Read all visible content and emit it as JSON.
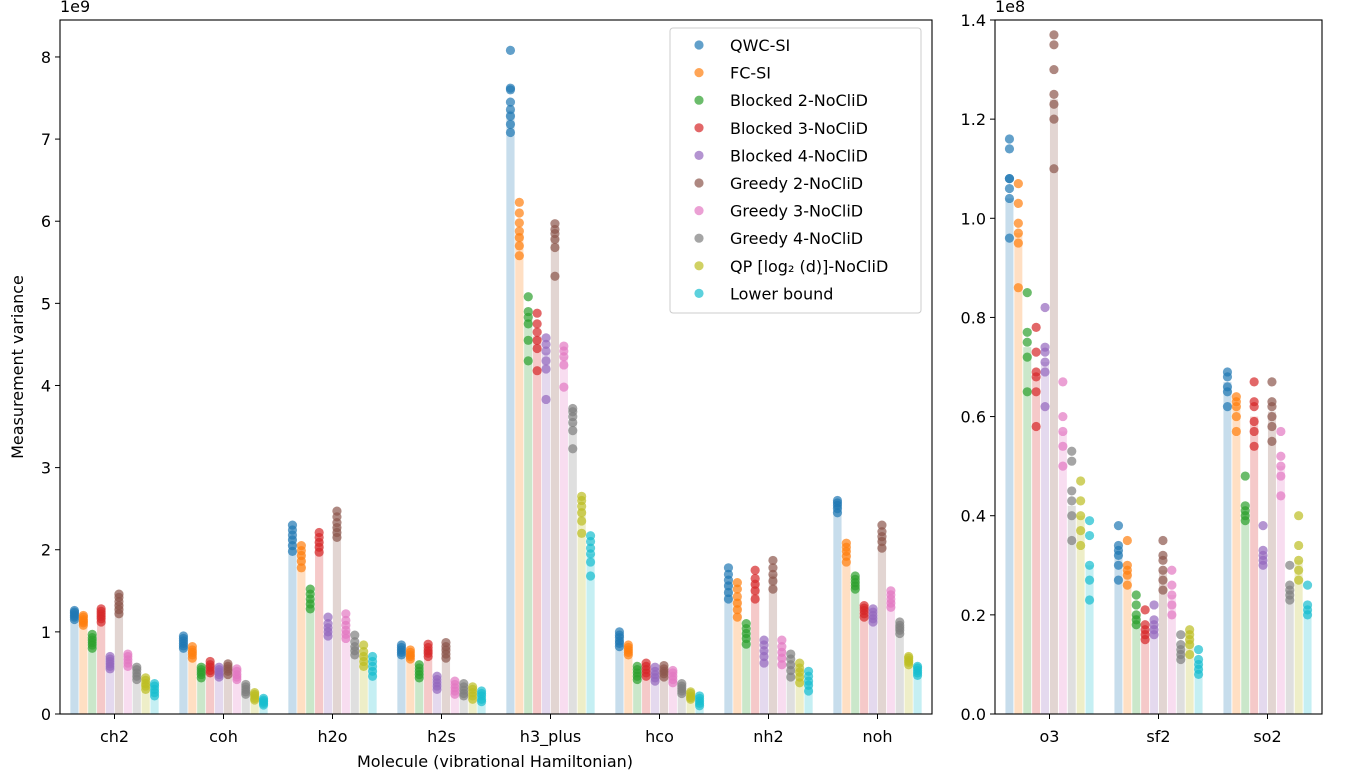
{
  "chart_data": [
    {
      "type": "bar",
      "subtype": "bar-with-scatter-points",
      "xlabel": "Molecule (vibrational Hamiltonian)",
      "ylabel": "Measurement variance",
      "offset_label": "1e9",
      "ylim": [
        0,
        8.45
      ],
      "yticks": [
        0,
        1,
        2,
        3,
        4,
        5,
        6,
        7,
        8
      ],
      "legend_position": "top-right",
      "categories": [
        "ch2",
        "coh",
        "h2o",
        "h2s",
        "h3_plus",
        "hco",
        "nh2",
        "noh"
      ],
      "series": [
        {
          "name": "QWC-SI",
          "color": "#1f77b4",
          "values": [
            1.21,
            0.87,
            2.15,
            0.8,
            7.35,
            0.9,
            1.6,
            2.55
          ]
        },
        {
          "name": "FC-SI",
          "color": "#ff7f0e",
          "values": [
            1.13,
            0.75,
            1.95,
            0.73,
            5.85,
            0.8,
            1.4,
            2.0
          ]
        },
        {
          "name": "Blocked 2-NoCliD",
          "color": "#2ca02c",
          "values": [
            0.87,
            0.5,
            1.4,
            0.52,
            4.8,
            0.52,
            1.0,
            1.6
          ]
        },
        {
          "name": "Blocked 3-NoCliD",
          "color": "#d62728",
          "values": [
            1.2,
            0.58,
            2.12,
            0.78,
            4.6,
            0.55,
            1.6,
            1.27
          ]
        },
        {
          "name": "Blocked 4-NoCliD",
          "color": "#9467bd",
          "values": [
            0.62,
            0.52,
            1.05,
            0.38,
            4.4,
            0.5,
            0.78,
            1.2
          ]
        },
        {
          "name": "Greedy 2-NoCliD",
          "color": "#8c564b",
          "values": [
            1.35,
            0.55,
            2.28,
            0.8,
            5.8,
            0.55,
            1.7,
            2.15
          ]
        },
        {
          "name": "Greedy 3-NoCliD",
          "color": "#e377c2",
          "values": [
            0.67,
            0.48,
            1.02,
            0.33,
            4.35,
            0.48,
            0.78,
            1.38
          ]
        },
        {
          "name": "Greedy 4-NoCliD",
          "color": "#7f7f7f",
          "values": [
            0.5,
            0.3,
            0.83,
            0.3,
            3.55,
            0.32,
            0.62,
            1.03
          ]
        },
        {
          "name": "QP [log₂ (d)]-NoCliD",
          "color": "#bcbd22",
          "values": [
            0.38,
            0.22,
            0.72,
            0.27,
            2.5,
            0.23,
            0.53,
            0.65
          ]
        },
        {
          "name": "Lower bound",
          "color": "#17becf",
          "values": [
            0.3,
            0.15,
            0.56,
            0.22,
            1.95,
            0.17,
            0.4,
            0.53
          ]
        }
      ],
      "points": [
        [
          [
            1.15,
            1.18,
            1.2,
            1.22,
            1.24,
            1.26
          ],
          [
            1.08,
            1.11,
            1.13,
            1.15,
            1.18,
            1.2
          ],
          [
            0.8,
            0.84,
            0.87,
            0.9,
            0.93,
            0.97
          ],
          [
            1.12,
            1.16,
            1.19,
            1.22,
            1.25,
            1.28
          ],
          [
            0.55,
            0.58,
            0.61,
            0.64,
            0.67,
            0.7
          ],
          [
            1.22,
            1.27,
            1.32,
            1.37,
            1.42,
            1.46
          ],
          [
            0.58,
            0.62,
            0.66,
            0.7,
            0.73
          ],
          [
            0.42,
            0.46,
            0.5,
            0.54,
            0.57
          ],
          [
            0.3,
            0.34,
            0.37,
            0.41,
            0.44
          ],
          [
            0.22,
            0.26,
            0.3,
            0.34,
            0.37
          ]
        ],
        [
          [
            0.8,
            0.83,
            0.86,
            0.89,
            0.92,
            0.95
          ],
          [
            0.68,
            0.72,
            0.75,
            0.78,
            0.82
          ],
          [
            0.44,
            0.48,
            0.51,
            0.54,
            0.57
          ],
          [
            0.5,
            0.53,
            0.57,
            0.6,
            0.64
          ],
          [
            0.45,
            0.48,
            0.51,
            0.54,
            0.57
          ],
          [
            0.48,
            0.52,
            0.55,
            0.58,
            0.61
          ],
          [
            0.42,
            0.45,
            0.48,
            0.52,
            0.55
          ],
          [
            0.24,
            0.27,
            0.3,
            0.33,
            0.36
          ],
          [
            0.17,
            0.19,
            0.22,
            0.24,
            0.26
          ],
          [
            0.11,
            0.13,
            0.15,
            0.17,
            0.19
          ]
        ],
        [
          [
            1.98,
            2.05,
            2.12,
            2.18,
            2.24,
            2.3
          ],
          [
            1.78,
            1.86,
            1.93,
            1.99,
            2.05
          ],
          [
            1.28,
            1.34,
            1.4,
            1.46,
            1.52
          ],
          [
            1.97,
            2.03,
            2.09,
            2.15,
            2.21
          ],
          [
            0.95,
            1.0,
            1.05,
            1.1,
            1.18
          ],
          [
            2.15,
            2.21,
            2.27,
            2.33,
            2.4,
            2.47
          ],
          [
            0.92,
            0.97,
            1.02,
            1.08,
            1.14,
            1.22
          ],
          [
            0.72,
            0.77,
            0.82,
            0.88,
            0.96
          ],
          [
            0.58,
            0.64,
            0.7,
            0.76,
            0.84
          ],
          [
            0.46,
            0.52,
            0.58,
            0.64,
            0.7
          ]
        ],
        [
          [
            0.72,
            0.75,
            0.78,
            0.81,
            0.84
          ],
          [
            0.67,
            0.7,
            0.72,
            0.75,
            0.78
          ],
          [
            0.44,
            0.48,
            0.52,
            0.56,
            0.6
          ],
          [
            0.7,
            0.74,
            0.77,
            0.81,
            0.85
          ],
          [
            0.3,
            0.34,
            0.38,
            0.42,
            0.46
          ],
          [
            0.68,
            0.73,
            0.78,
            0.82,
            0.87
          ],
          [
            0.24,
            0.28,
            0.32,
            0.36,
            0.4
          ],
          [
            0.22,
            0.25,
            0.29,
            0.33,
            0.37
          ],
          [
            0.18,
            0.22,
            0.26,
            0.3,
            0.33
          ],
          [
            0.15,
            0.18,
            0.22,
            0.25,
            0.28
          ]
        ],
        [
          [
            7.08,
            7.18,
            7.28,
            7.36,
            7.45,
            7.6,
            7.62,
            8.08
          ],
          [
            5.58,
            5.7,
            5.8,
            5.88,
            5.98,
            6.1,
            6.23
          ],
          [
            4.3,
            4.55,
            4.75,
            4.83,
            4.9,
            5.08
          ],
          [
            4.18,
            4.45,
            4.55,
            4.65,
            4.75,
            4.88
          ],
          [
            3.83,
            4.2,
            4.3,
            4.42,
            4.5,
            4.58
          ],
          [
            5.33,
            5.68,
            5.78,
            5.85,
            5.9,
            5.97
          ],
          [
            3.98,
            4.25,
            4.35,
            4.42,
            4.48
          ],
          [
            3.23,
            3.45,
            3.55,
            3.62,
            3.68,
            3.72
          ],
          [
            2.2,
            2.35,
            2.45,
            2.53,
            2.6,
            2.65
          ],
          [
            1.68,
            1.85,
            1.95,
            2.02,
            2.1,
            2.17
          ]
        ],
        [
          [
            0.82,
            0.86,
            0.89,
            0.93,
            0.96,
            1.0
          ],
          [
            0.72,
            0.75,
            0.78,
            0.81,
            0.84
          ],
          [
            0.42,
            0.46,
            0.5,
            0.54,
            0.58
          ],
          [
            0.46,
            0.5,
            0.54,
            0.58,
            0.62
          ],
          [
            0.4,
            0.44,
            0.48,
            0.52,
            0.57
          ],
          [
            0.45,
            0.49,
            0.52,
            0.55,
            0.59
          ],
          [
            0.38,
            0.42,
            0.46,
            0.5,
            0.53
          ],
          [
            0.25,
            0.28,
            0.31,
            0.34,
            0.37
          ],
          [
            0.18,
            0.2,
            0.22,
            0.25,
            0.27
          ],
          [
            0.1,
            0.13,
            0.16,
            0.19,
            0.22
          ]
        ],
        [
          [
            1.4,
            1.48,
            1.56,
            1.63,
            1.7,
            1.78
          ],
          [
            1.18,
            1.27,
            1.35,
            1.43,
            1.52,
            1.6
          ],
          [
            0.85,
            0.92,
            0.98,
            1.04,
            1.1
          ],
          [
            1.4,
            1.5,
            1.58,
            1.65,
            1.75
          ],
          [
            0.62,
            0.7,
            0.77,
            0.84,
            0.9
          ],
          [
            1.52,
            1.62,
            1.7,
            1.78,
            1.87
          ],
          [
            0.6,
            0.68,
            0.75,
            0.82,
            0.9
          ],
          [
            0.45,
            0.53,
            0.6,
            0.67,
            0.73
          ],
          [
            0.38,
            0.45,
            0.51,
            0.56,
            0.62
          ],
          [
            0.28,
            0.35,
            0.4,
            0.46,
            0.52
          ]
        ],
        [
          [
            2.45,
            2.5,
            2.54,
            2.57,
            2.6
          ],
          [
            1.85,
            1.92,
            1.98,
            2.03,
            2.08
          ],
          [
            1.52,
            1.56,
            1.6,
            1.64,
            1.68
          ],
          [
            1.18,
            1.22,
            1.26,
            1.29,
            1.32
          ],
          [
            1.12,
            1.16,
            1.2,
            1.24,
            1.28
          ],
          [
            2.02,
            2.1,
            2.16,
            2.22,
            2.3
          ],
          [
            1.3,
            1.35,
            1.4,
            1.45,
            1.5
          ],
          [
            0.98,
            1.02,
            1.05,
            1.08,
            1.12
          ],
          [
            0.6,
            0.63,
            0.65,
            0.68,
            0.7
          ],
          [
            0.47,
            0.5,
            0.53,
            0.56,
            0.58
          ]
        ]
      ]
    },
    {
      "type": "bar",
      "subtype": "bar-with-scatter-points",
      "xlabel": "",
      "ylabel": "",
      "offset_label": "1e8",
      "ylim": [
        0,
        1.4
      ],
      "yticks": [
        0.0,
        0.2,
        0.4,
        0.6,
        0.8,
        1.0,
        1.2,
        1.4
      ],
      "categories": [
        "o3",
        "sf2",
        "so2"
      ],
      "series": [
        {
          "name": "QWC-SI",
          "color": "#1f77b4",
          "values": [
            1.04,
            0.33,
            0.67
          ]
        },
        {
          "name": "FC-SI",
          "color": "#ff7f0e",
          "values": [
            0.97,
            0.29,
            0.62
          ]
        },
        {
          "name": "Blocked 2-NoCliD",
          "color": "#2ca02c",
          "values": [
            0.74,
            0.2,
            0.41
          ]
        },
        {
          "name": "Blocked 3-NoCliD",
          "color": "#d62728",
          "values": [
            0.68,
            0.17,
            0.6
          ]
        },
        {
          "name": "Blocked 4-NoCliD",
          "color": "#9467bd",
          "values": [
            0.71,
            0.18,
            0.32
          ]
        },
        {
          "name": "Greedy 2-NoCliD",
          "color": "#8c564b",
          "values": [
            1.24,
            0.29,
            0.61
          ]
        },
        {
          "name": "Greedy 3-NoCliD",
          "color": "#e377c2",
          "values": [
            0.57,
            0.24,
            0.5
          ]
        },
        {
          "name": "Greedy 4-NoCliD",
          "color": "#7f7f7f",
          "values": [
            0.42,
            0.13,
            0.25
          ]
        },
        {
          "name": "QP [log₂ (d)]-NoCliD",
          "color": "#bcbd22",
          "values": [
            0.4,
            0.15,
            0.31
          ]
        },
        {
          "name": "Lower bound",
          "color": "#17becf",
          "values": [
            0.3,
            0.1,
            0.21
          ]
        }
      ],
      "points": [
        [
          [
            0.96,
            1.04,
            1.06,
            1.08,
            1.08,
            1.14,
            1.16
          ],
          [
            0.86,
            0.95,
            0.97,
            0.99,
            1.03,
            1.07
          ],
          [
            0.65,
            0.72,
            0.75,
            0.77,
            0.85
          ],
          [
            0.58,
            0.65,
            0.68,
            0.69,
            0.73,
            0.78
          ],
          [
            0.62,
            0.69,
            0.71,
            0.73,
            0.74,
            0.82
          ],
          [
            1.1,
            1.2,
            1.23,
            1.25,
            1.3,
            1.35,
            1.37
          ],
          [
            0.5,
            0.54,
            0.57,
            0.6,
            0.67
          ],
          [
            0.35,
            0.4,
            0.43,
            0.45,
            0.51,
            0.53
          ],
          [
            0.34,
            0.37,
            0.4,
            0.43,
            0.47
          ],
          [
            0.23,
            0.27,
            0.3,
            0.36,
            0.39
          ]
        ],
        [
          [
            0.27,
            0.3,
            0.32,
            0.33,
            0.34,
            0.38
          ],
          [
            0.26,
            0.28,
            0.29,
            0.3,
            0.35
          ],
          [
            0.18,
            0.19,
            0.2,
            0.22,
            0.24
          ],
          [
            0.15,
            0.16,
            0.17,
            0.18,
            0.21
          ],
          [
            0.16,
            0.17,
            0.18,
            0.19,
            0.22
          ],
          [
            0.25,
            0.27,
            0.29,
            0.31,
            0.32,
            0.35
          ],
          [
            0.2,
            0.22,
            0.24,
            0.26,
            0.29
          ],
          [
            0.11,
            0.12,
            0.13,
            0.14,
            0.16
          ],
          [
            0.12,
            0.14,
            0.15,
            0.16,
            0.17
          ],
          [
            0.08,
            0.09,
            0.1,
            0.11,
            0.13
          ]
        ],
        [
          [
            0.62,
            0.65,
            0.66,
            0.68,
            0.69
          ],
          [
            0.57,
            0.6,
            0.62,
            0.63,
            0.64
          ],
          [
            0.39,
            0.4,
            0.41,
            0.42,
            0.48
          ],
          [
            0.54,
            0.57,
            0.59,
            0.62,
            0.63,
            0.67
          ],
          [
            0.3,
            0.31,
            0.32,
            0.33,
            0.38
          ],
          [
            0.55,
            0.58,
            0.6,
            0.62,
            0.63,
            0.67
          ],
          [
            0.44,
            0.48,
            0.5,
            0.52,
            0.57
          ],
          [
            0.23,
            0.24,
            0.25,
            0.26,
            0.3
          ],
          [
            0.27,
            0.29,
            0.31,
            0.34,
            0.4
          ],
          [
            0.2,
            0.21,
            0.22,
            0.26
          ]
        ]
      ]
    }
  ]
}
